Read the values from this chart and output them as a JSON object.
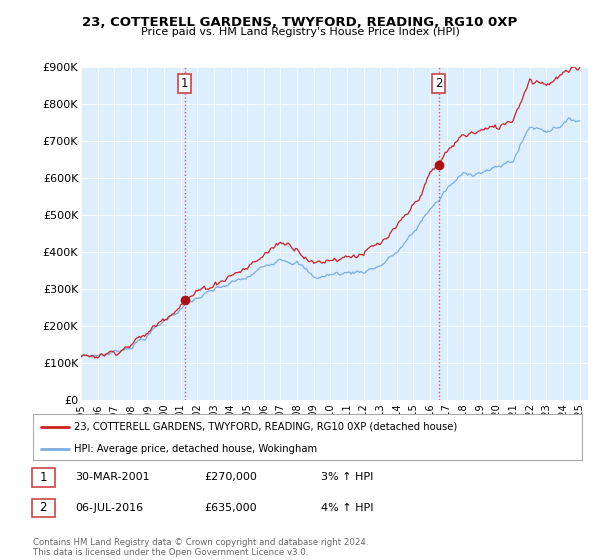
{
  "title": "23, COTTERELL GARDENS, TWYFORD, READING, RG10 0XP",
  "subtitle": "Price paid vs. HM Land Registry's House Price Index (HPI)",
  "ylim": [
    0,
    900000
  ],
  "yticks": [
    0,
    100000,
    200000,
    300000,
    400000,
    500000,
    600000,
    700000,
    800000,
    900000
  ],
  "ytick_labels": [
    "£0",
    "£100K",
    "£200K",
    "£300K",
    "£400K",
    "£500K",
    "£600K",
    "£700K",
    "£800K",
    "£900K"
  ],
  "xlim_start": 1995.0,
  "xlim_end": 2025.5,
  "xtick_years": [
    1995,
    1996,
    1997,
    1998,
    1999,
    2000,
    2001,
    2002,
    2003,
    2004,
    2005,
    2006,
    2007,
    2008,
    2009,
    2010,
    2011,
    2012,
    2013,
    2014,
    2015,
    2016,
    2017,
    2018,
    2019,
    2020,
    2021,
    2022,
    2023,
    2024,
    2025
  ],
  "hpi_color": "#7aade0",
  "price_color": "#cc2222",
  "vline_color": "#cc4444",
  "marker_color": "#aa1111",
  "sale1_x": 2001.24,
  "sale1_price": 270000,
  "sale1_label": "30-MAR-2001",
  "sale1_value_str": "£270,000",
  "sale1_hpi_str": "3% ↑ HPI",
  "sale2_x": 2016.52,
  "sale2_price": 635000,
  "sale2_label": "06-JUL-2016",
  "sale2_value_str": "£635,000",
  "sale2_hpi_str": "4% ↑ HPI",
  "legend_line1": "23, COTTERELL GARDENS, TWYFORD, READING, RG10 0XP (detached house)",
  "legend_line2": "HPI: Average price, detached house, Wokingham",
  "annotation1_label": "1",
  "annotation2_label": "2",
  "footer": "Contains HM Land Registry data © Crown copyright and database right 2024.\nThis data is licensed under the Open Government Licence v3.0.",
  "background_color": "#ffffff",
  "plot_bg_color": "#ddeeff"
}
